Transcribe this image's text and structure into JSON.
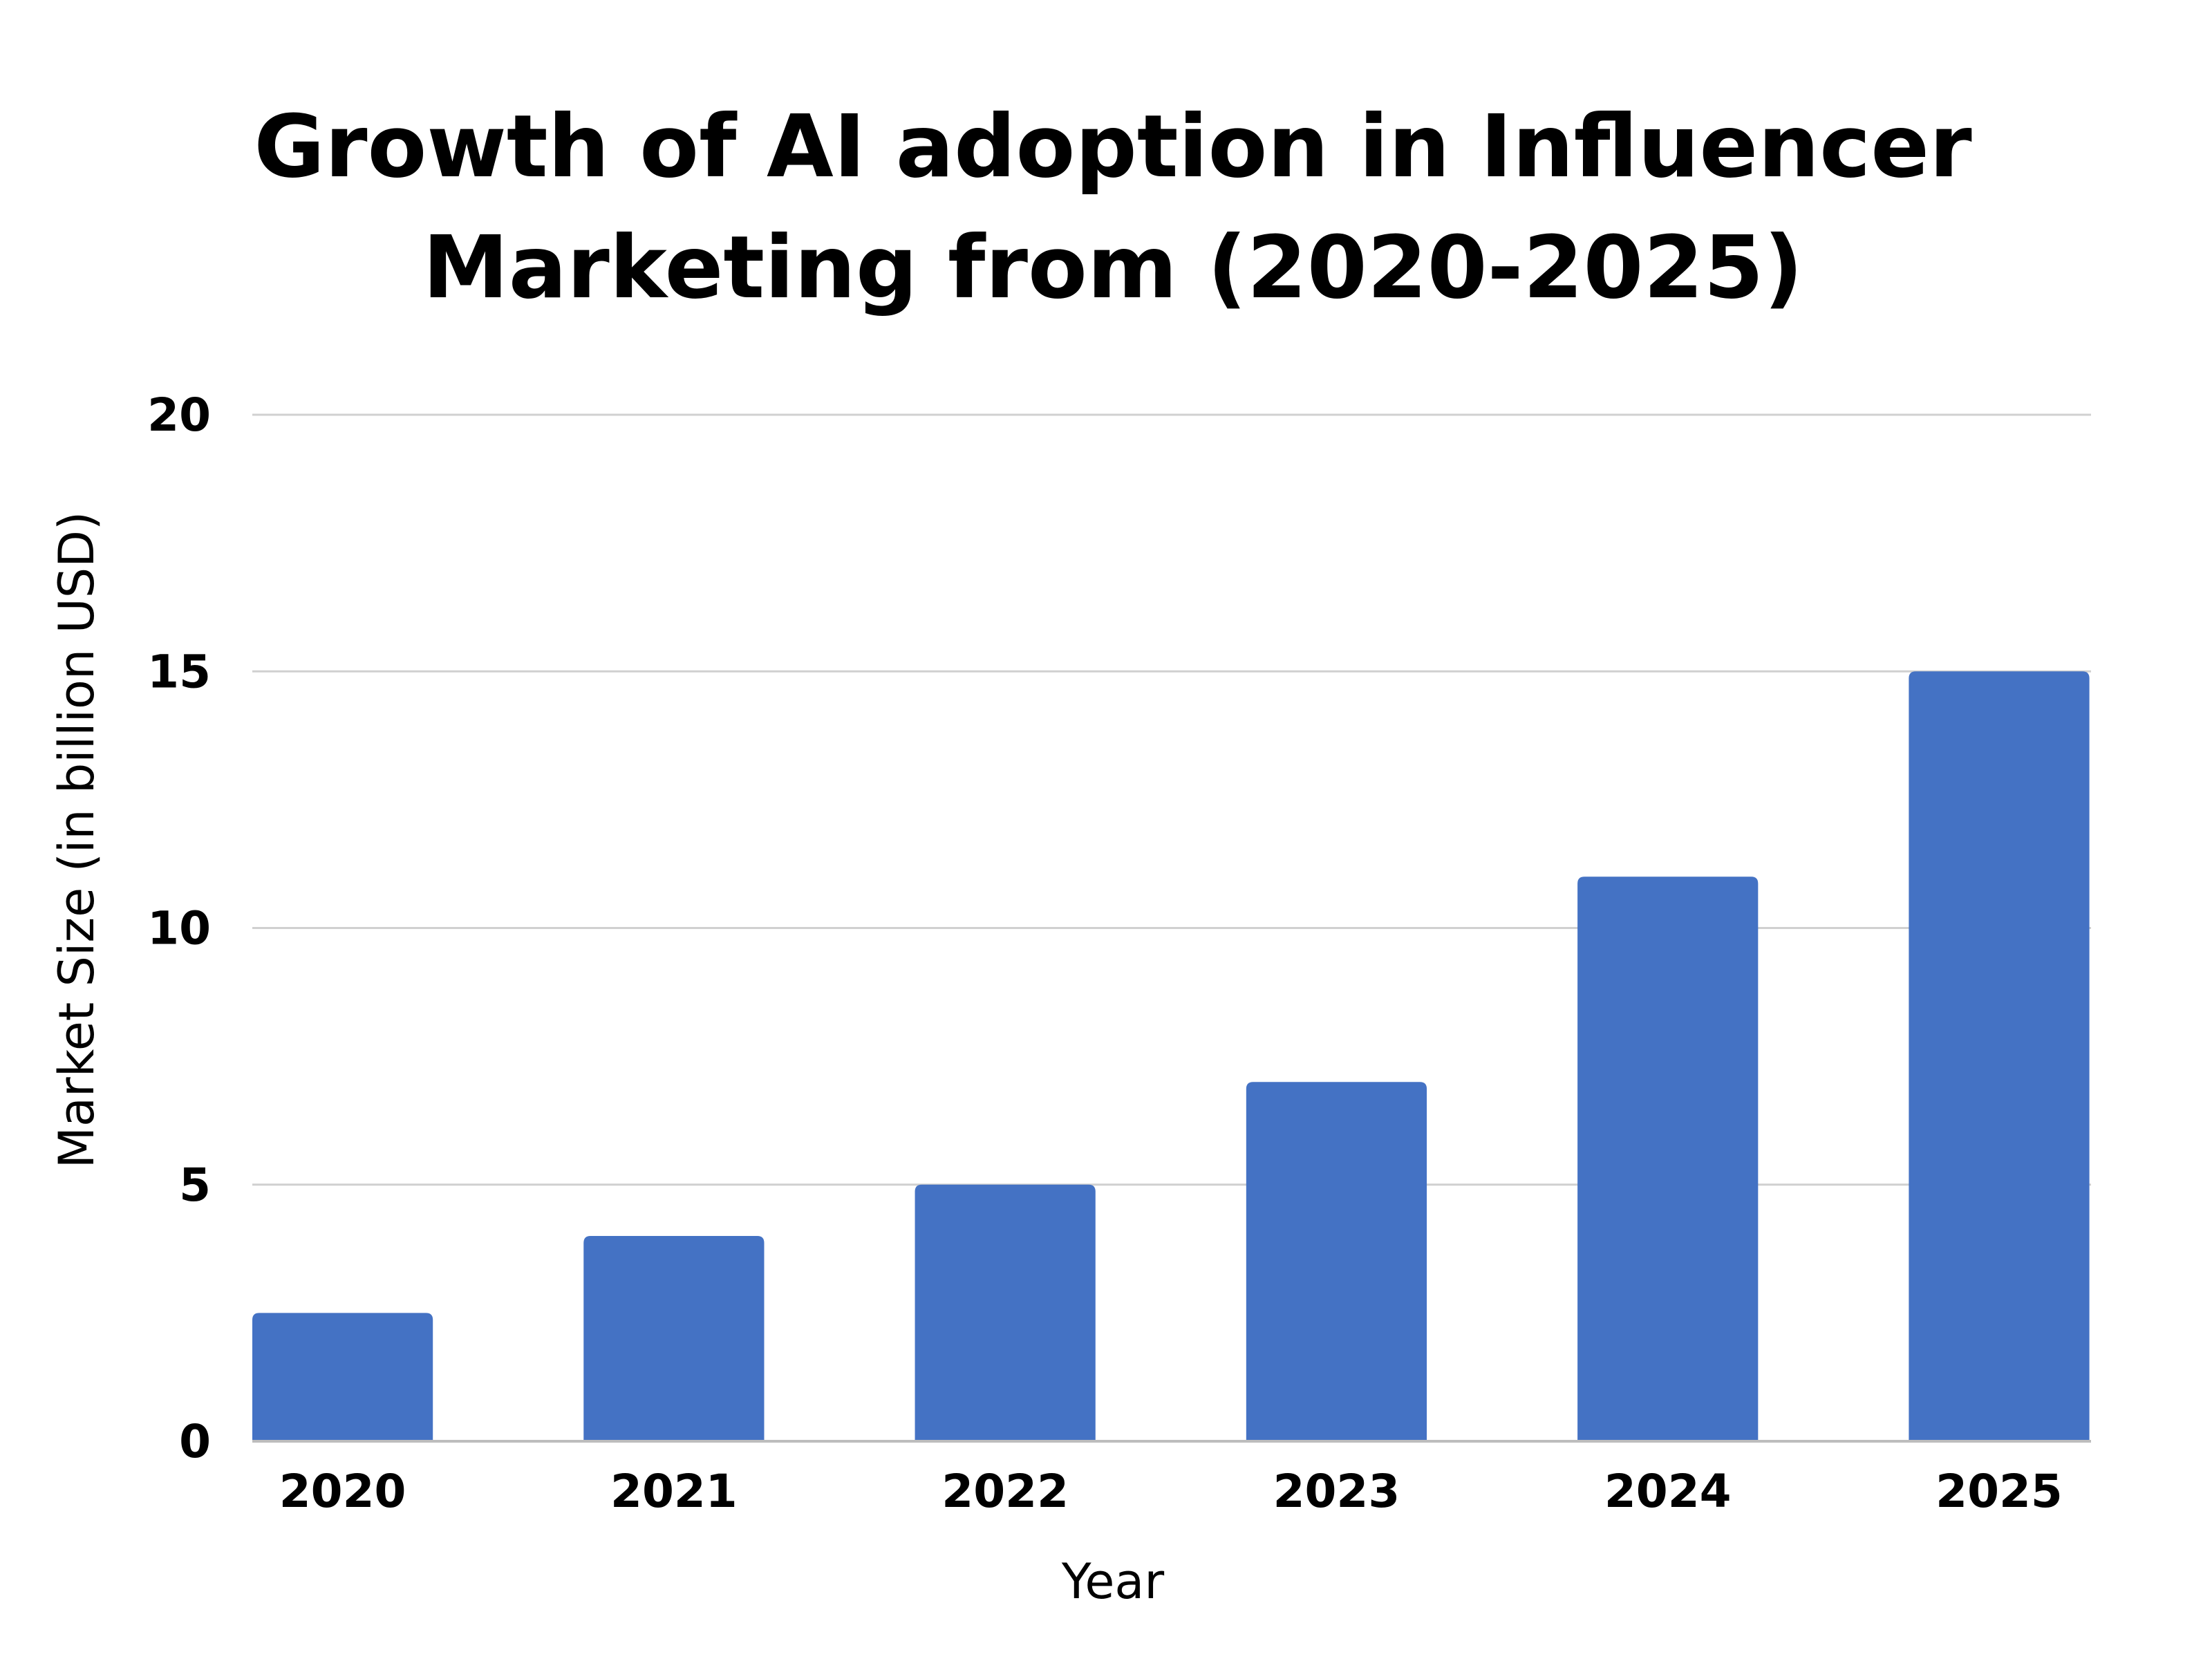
{
  "chart_data": {
    "type": "bar",
    "title_lines": [
      "Growth of AI adoption in Influencer",
      "Marketing from (2020-2025)"
    ],
    "xlabel": "Year",
    "ylabel": "Market Size (in billion USD)",
    "categories": [
      "2020",
      "2021",
      "2022",
      "2023",
      "2024",
      "2025"
    ],
    "values": [
      2.5,
      4,
      5,
      7,
      11,
      15
    ],
    "ylim": [
      0,
      20
    ],
    "yticks": [
      "0",
      "5",
      "10",
      "15",
      "20"
    ],
    "grid": true,
    "legend": "none",
    "bar_color": "#4472C4"
  }
}
